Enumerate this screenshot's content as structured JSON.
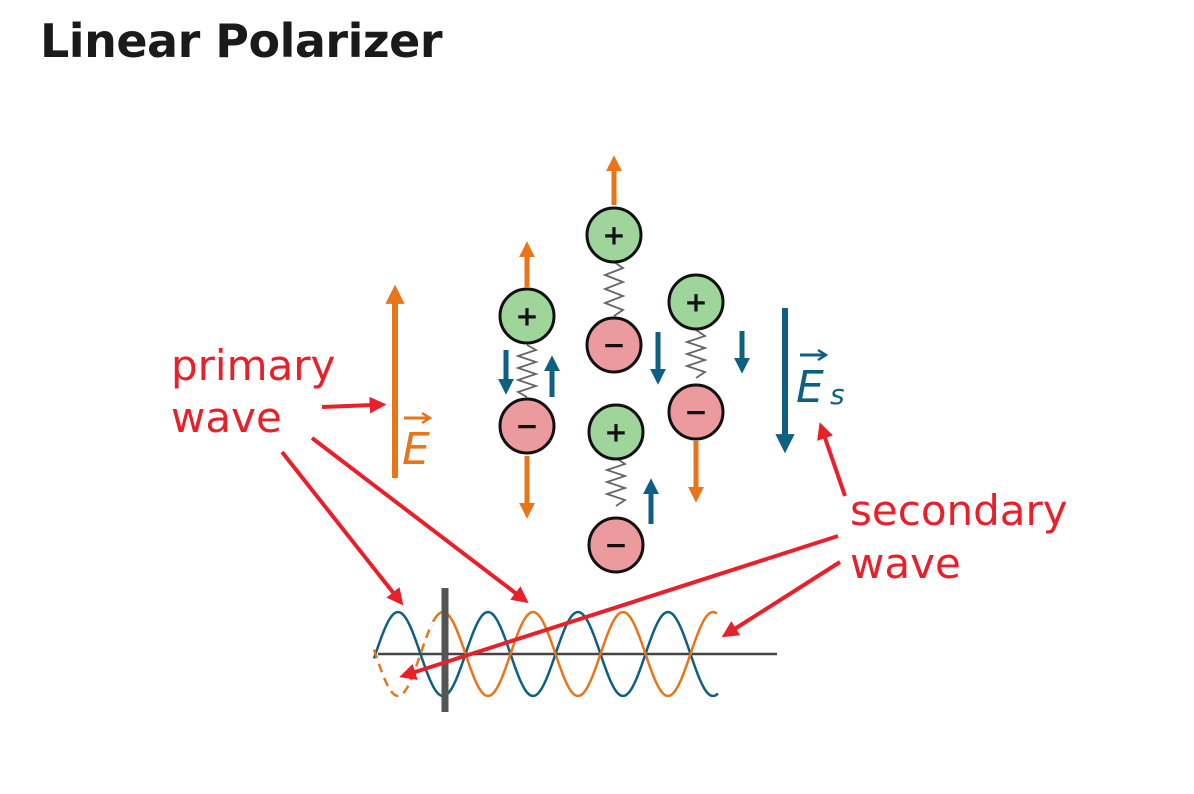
{
  "title": "Linear Polarizer",
  "diagram": {
    "labels": {
      "primary_line1": "primary",
      "primary_line2": "wave",
      "secondary_line1": "secondary",
      "secondary_line2": "wave",
      "field_primary": "E",
      "field_secondary": "E",
      "field_secondary_subscript": "s"
    },
    "charge_signs": {
      "positive": "+",
      "negative": "−"
    },
    "colors": {
      "primary_field": "#e8751a",
      "secondary_field": "#0d5f84",
      "annotation": "#e8202a",
      "positive_charge": "#9fd49a",
      "negative_charge": "#eb9a9e",
      "polarizer_bar": "#555555"
    }
  }
}
